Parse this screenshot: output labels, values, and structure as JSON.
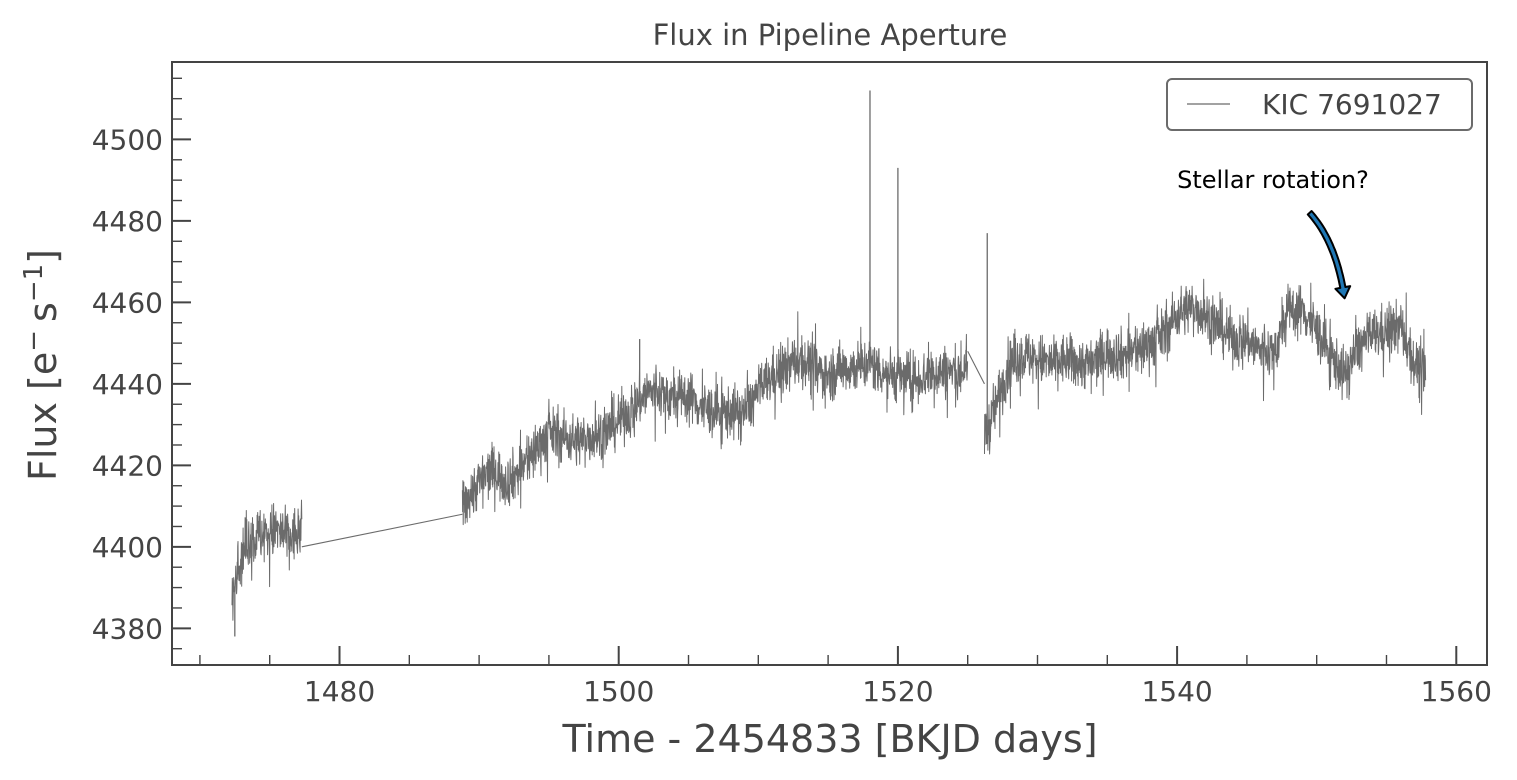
{
  "chart_data": {
    "type": "line",
    "title": "Flux in Pipeline Aperture",
    "xlabel": "Time - 2454833 [BKJD days]",
    "ylabel_main": "Flux [e",
    "ylabel_sup1": "−",
    "ylabel_mid": "s",
    "ylabel_sup2": "−1",
    "ylabel_end": "]",
    "xlim": [
      1468,
      1562.2
    ],
    "ylim": [
      4371,
      4519
    ],
    "x_major_ticks": [
      1480,
      1500,
      1520,
      1540,
      1560
    ],
    "x_tick_labels": [
      "1480",
      "1500",
      "1520",
      "1540",
      "1560"
    ],
    "x_minor_step": 5,
    "y_major_ticks": [
      4380,
      4400,
      4420,
      4440,
      4460,
      4480,
      4500
    ],
    "y_tick_labels": [
      "4380",
      "4400",
      "4420",
      "4440",
      "4460",
      "4480",
      "4500"
    ],
    "y_minor_step": 5,
    "grid": false,
    "legend": {
      "position": "top-right",
      "entries": [
        "KIC 7691027"
      ]
    },
    "series": [
      {
        "name": "KIC 7691027",
        "color": "#6b6b6b",
        "segments": [
          {
            "x_start": 1472.3,
            "x_end": 1477.3,
            "trend": [
              [
                1472.3,
                4386
              ],
              [
                1472.6,
                4392
              ],
              [
                1473.0,
                4398
              ],
              [
                1473.5,
                4402
              ],
              [
                1474.5,
                4403
              ],
              [
                1475.5,
                4404
              ],
              [
                1476.5,
                4402
              ],
              [
                1477.3,
                4404
              ]
            ],
            "noise": 3.5
          },
          {
            "x_start": 1488.8,
            "x_end": 1525.0,
            "trend": [
              [
                1488.8,
                4410
              ],
              [
                1490,
                4416
              ],
              [
                1491,
                4419
              ],
              [
                1492,
                4416
              ],
              [
                1493,
                4419
              ],
              [
                1494,
                4424
              ],
              [
                1495,
                4428
              ],
              [
                1496,
                4427
              ],
              [
                1497,
                4426
              ],
              [
                1498,
                4427
              ],
              [
                1499,
                4428
              ],
              [
                1500,
                4431
              ],
              [
                1501,
                4434
              ],
              [
                1502,
                4438
              ],
              [
                1503,
                4438
              ],
              [
                1504,
                4436
              ],
              [
                1505,
                4437
              ],
              [
                1506,
                4434
              ],
              [
                1507,
                4433
              ],
              [
                1508,
                4433
              ],
              [
                1509,
                4433
              ],
              [
                1510,
                4438
              ],
              [
                1511,
                4442
              ],
              [
                1512,
                4444
              ],
              [
                1513,
                4446
              ],
              [
                1514,
                4444
              ],
              [
                1515,
                4442
              ],
              [
                1516,
                4444
              ],
              [
                1517,
                4444
              ],
              [
                1518,
                4445
              ],
              [
                1519,
                4443
              ],
              [
                1520,
                4442
              ],
              [
                1521,
                4441
              ],
              [
                1522,
                4442
              ],
              [
                1523,
                4443
              ],
              [
                1524,
                4443
              ],
              [
                1525,
                4443
              ]
            ],
            "noise": 3.2
          },
          {
            "x_start": 1526.2,
            "x_end": 1557.8,
            "trend": [
              [
                1526.2,
                4428
              ],
              [
                1526.6,
                4430
              ],
              [
                1527.2,
                4437
              ],
              [
                1528,
                4445
              ],
              [
                1529,
                4447
              ],
              [
                1530,
                4446
              ],
              [
                1531,
                4445
              ],
              [
                1532,
                4446
              ],
              [
                1533,
                4445
              ],
              [
                1534,
                4445
              ],
              [
                1535,
                4448
              ],
              [
                1536,
                4447
              ],
              [
                1537,
                4448
              ],
              [
                1538,
                4450
              ],
              [
                1539,
                4452
              ],
              [
                1540,
                4457
              ],
              [
                1541,
                4459
              ],
              [
                1542,
                4457
              ],
              [
                1543,
                4454
              ],
              [
                1544,
                4451
              ],
              [
                1545,
                4451
              ],
              [
                1546,
                4448
              ],
              [
                1547,
                4448
              ],
              [
                1548,
                4458
              ],
              [
                1549,
                4458
              ],
              [
                1550,
                4453
              ],
              [
                1551,
                4447
              ],
              [
                1552,
                4442
              ],
              [
                1553,
                4449
              ],
              [
                1554,
                4452
              ],
              [
                1555,
                4453
              ],
              [
                1556,
                4454
              ],
              [
                1557,
                4445
              ],
              [
                1557.8,
                4442
              ]
            ],
            "noise": 3.2
          }
        ],
        "connectors": [
          [
            [
              1477.3,
              4400
            ],
            [
              1488.8,
              4408
            ]
          ],
          [
            [
              1525.0,
              4448
            ],
            [
              1526.2,
              4440
            ]
          ]
        ],
        "spikes": [
          [
            1518.0,
            4512
          ],
          [
            1520.0,
            4493
          ],
          [
            1526.4,
            4477
          ],
          [
            1501.5,
            4451
          ],
          [
            1472.5,
            4378
          ]
        ]
      }
    ],
    "annotation": {
      "text": "Stellar rotation?",
      "text_at": [
        1540,
        4490
      ],
      "arrow_from": [
        1549.5,
        4482
      ],
      "arrow_to": [
        1552.0,
        4461
      ],
      "arrow_color": "#1f77b4"
    }
  }
}
